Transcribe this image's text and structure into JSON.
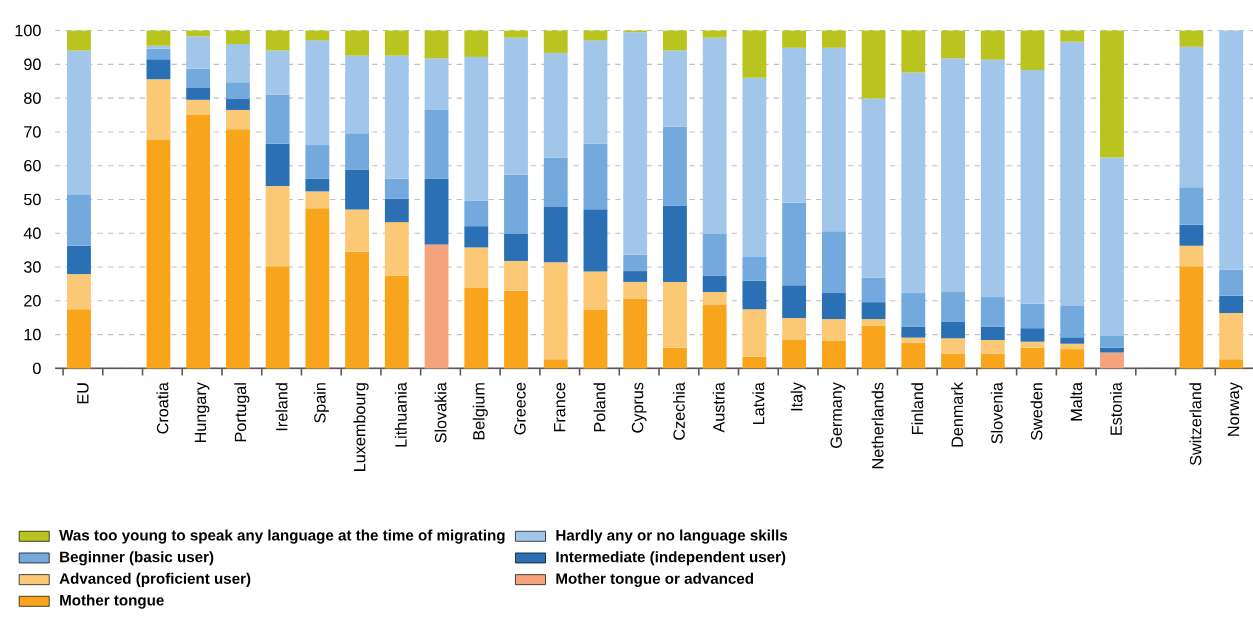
{
  "chart_data": {
    "type": "bar",
    "stacked": true,
    "categories": [
      "EU",
      null,
      "Croatia",
      "Hungary",
      "Portugal",
      "Ireland",
      "Spain",
      "Luxembourg",
      "Lithuania",
      "Slovakia",
      "Belgium",
      "Greece",
      "France",
      "Poland",
      "Cyprus",
      "Czechia",
      "Austria",
      "Latvia",
      "Italy",
      "Germany",
      "Netherlands",
      "Finland",
      "Denmark",
      "Slovenia",
      "Sweden",
      "Malta",
      "Estonia",
      null,
      "Switzerland",
      "Norway"
    ],
    "series": [
      {
        "name": "Mother tongue",
        "color": "#f9a51b",
        "values": [
          17.5,
          null,
          67.6,
          75.0,
          70.8,
          30.2,
          47.4,
          34.5,
          27.5,
          null,
          23.8,
          23.0,
          2.7,
          17.3,
          20.7,
          6.1,
          18.8,
          3.5,
          8.4,
          8.1,
          12.7,
          7.6,
          4.4,
          4.4,
          6.1,
          5.7,
          null,
          null,
          30.2,
          2.7
        ]
      },
      {
        "name": "Mother tongue or advanced",
        "color": "#f4a37c",
        "values": [
          null,
          null,
          null,
          null,
          null,
          null,
          null,
          null,
          null,
          36.7,
          null,
          null,
          null,
          null,
          null,
          null,
          null,
          null,
          null,
          null,
          null,
          null,
          null,
          null,
          null,
          null,
          4.7,
          null,
          null,
          null
        ]
      },
      {
        "name": "Advanced (proficient user)",
        "color": "#fbc975",
        "values": [
          10.4,
          null,
          18.0,
          4.5,
          5.7,
          23.8,
          5.0,
          12.5,
          15.8,
          null,
          12.0,
          8.8,
          28.7,
          11.4,
          4.9,
          19.5,
          3.8,
          14.0,
          6.5,
          6.5,
          1.9,
          1.5,
          4.5,
          4.0,
          1.8,
          1.6,
          null,
          null,
          6.1,
          13.7
        ]
      },
      {
        "name": "Intermediate (independent user)",
        "color": "#2b70b5",
        "values": [
          8.4,
          null,
          5.9,
          3.5,
          3.4,
          12.5,
          3.8,
          11.9,
          6.9,
          19.5,
          6.3,
          8.0,
          16.4,
          18.4,
          3.2,
          22.6,
          4.9,
          8.5,
          9.7,
          7.7,
          5.0,
          3.3,
          5.0,
          4.0,
          4.0,
          1.9,
          1.4,
          null,
          6.2,
          5.1
        ]
      },
      {
        "name": "Beginner (basic user)",
        "color": "#74a9de",
        "values": [
          15.0,
          null,
          3.1,
          5.7,
          4.8,
          14.6,
          9.9,
          10.7,
          6.0,
          20.3,
          7.6,
          17.6,
          14.6,
          19.5,
          4.9,
          23.3,
          12.3,
          7.0,
          24.4,
          18.3,
          7.3,
          9.9,
          8.7,
          8.7,
          7.2,
          9.3,
          3.5,
          null,
          11.1,
          7.7
        ]
      },
      {
        "name": "Hardly any or no language skills",
        "color": "#a1c6ea",
        "values": [
          42.8,
          null,
          0.9,
          9.6,
          11.3,
          13.0,
          31.0,
          23.0,
          36.4,
          15.3,
          42.5,
          40.5,
          31.0,
          30.5,
          65.8,
          22.6,
          58.1,
          53.0,
          45.9,
          54.3,
          53.0,
          65.3,
          69.2,
          70.3,
          69.2,
          78.2,
          52.8,
          null,
          41.6,
          70.8
        ]
      },
      {
        "name": "Was too young to speak any language at the time of migrating",
        "color": "#b9c41f",
        "values": [
          5.9,
          null,
          4.5,
          1.7,
          4.0,
          5.9,
          2.9,
          7.4,
          7.4,
          8.2,
          7.8,
          2.1,
          6.6,
          2.9,
          0.5,
          5.9,
          2.1,
          14.0,
          5.1,
          5.1,
          20.1,
          12.4,
          8.2,
          8.6,
          11.7,
          3.3,
          37.6,
          null,
          4.8,
          null
        ]
      }
    ],
    "ylim": [
      0,
      100
    ],
    "yticks": [
      0,
      10,
      20,
      30,
      40,
      50,
      60,
      70,
      80,
      90,
      100
    ],
    "grid": "y",
    "legend": "bottom"
  }
}
